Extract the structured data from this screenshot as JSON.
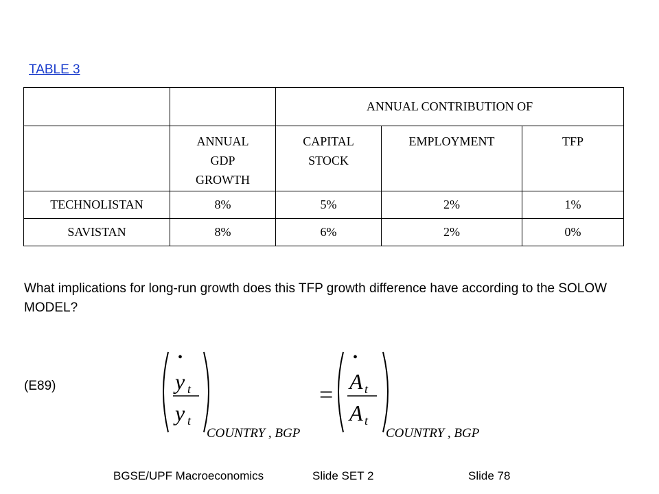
{
  "slide": {
    "table_label": "TABLE 3",
    "question": "What implications for long-run growth does this TFP growth difference have according to the SOLOW MODEL?",
    "equation_label": "(E89)"
  },
  "table": {
    "group_header": "ANNUAL CONTRIBUTION OF",
    "columns": [
      "",
      "ANNUAL GDP GROWTH",
      "CAPITAL STOCK",
      "EMPLOYMENT",
      "TFP"
    ],
    "rows": [
      [
        "TECHNOLISTAN",
        "8%",
        "5%",
        "2%",
        "1%"
      ],
      [
        "SAVISTAN",
        "8%",
        "6%",
        "2%",
        "0%"
      ]
    ]
  },
  "formula": {
    "lhs_numerator": "y",
    "lhs_denominator": "y",
    "subscript": "t",
    "dot": "•",
    "equals": "=",
    "rhs_numerator": "A",
    "rhs_denominator": "A",
    "condition": "COUNTRY , BGP"
  },
  "footer": {
    "course": "BGSE/UPF Macroeconomics",
    "set": "Slide SET 2",
    "slide_number": "Slide 78"
  }
}
